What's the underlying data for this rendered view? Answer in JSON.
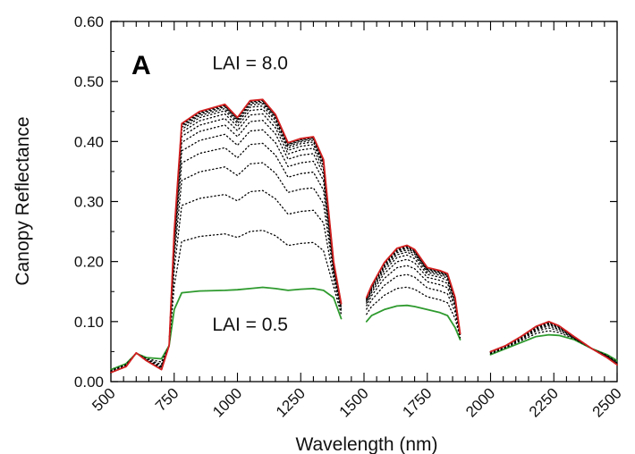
{
  "chart_data": {
    "type": "line",
    "panel_label": "A",
    "xlabel": "Wavelength (nm)",
    "ylabel": "Canopy Reflectance",
    "xlim": [
      500,
      2500
    ],
    "ylim": [
      0,
      0.6
    ],
    "x_ticks": [
      500,
      750,
      1000,
      1250,
      1500,
      1750,
      2000,
      2250,
      2500
    ],
    "y_ticks": [
      "0.00",
      "0.10",
      "0.20",
      "0.30",
      "0.40",
      "0.50",
      "0.60"
    ],
    "grid": false,
    "annotations": [
      {
        "text": "LAI = 8.0",
        "x": 1050,
        "y": 0.52
      },
      {
        "text": "LAI = 0.5",
        "x": 1050,
        "y": 0.085
      }
    ],
    "series_count": 16,
    "colors": {
      "top": "#d42020",
      "bottom": "#2e9a2e",
      "middle": "#000000"
    },
    "segments": [
      {
        "x": [
          500,
          560,
          600,
          640,
          700,
          730,
          750,
          780,
          850,
          950,
          1000,
          1050,
          1100,
          1150,
          1200,
          1250,
          1300,
          1340,
          1380,
          1410
        ],
        "top": [
          0.015,
          0.025,
          0.048,
          0.035,
          0.02,
          0.06,
          0.25,
          0.43,
          0.45,
          0.462,
          0.44,
          0.468,
          0.47,
          0.445,
          0.398,
          0.405,
          0.408,
          0.37,
          0.2,
          0.13
        ],
        "bot": [
          0.02,
          0.03,
          0.047,
          0.04,
          0.038,
          0.06,
          0.12,
          0.148,
          0.151,
          0.152,
          0.153,
          0.155,
          0.157,
          0.155,
          0.152,
          0.154,
          0.155,
          0.152,
          0.14,
          0.105
        ]
      },
      {
        "x": [
          1510,
          1530,
          1580,
          1630,
          1670,
          1700,
          1750,
          1800,
          1830,
          1860,
          1880
        ],
        "top": [
          0.14,
          0.16,
          0.198,
          0.222,
          0.227,
          0.22,
          0.19,
          0.185,
          0.18,
          0.14,
          0.08
        ],
        "bot": [
          0.1,
          0.11,
          0.12,
          0.126,
          0.127,
          0.125,
          0.12,
          0.115,
          0.11,
          0.09,
          0.07
        ]
      },
      {
        "x": [
          2000,
          2060,
          2120,
          2180,
          2230,
          2270,
          2330,
          2400,
          2460,
          2500
        ],
        "top": [
          0.05,
          0.06,
          0.075,
          0.092,
          0.1,
          0.093,
          0.075,
          0.055,
          0.04,
          0.028
        ],
        "bot": [
          0.045,
          0.055,
          0.065,
          0.075,
          0.078,
          0.077,
          0.07,
          0.055,
          0.045,
          0.035
        ]
      }
    ]
  }
}
